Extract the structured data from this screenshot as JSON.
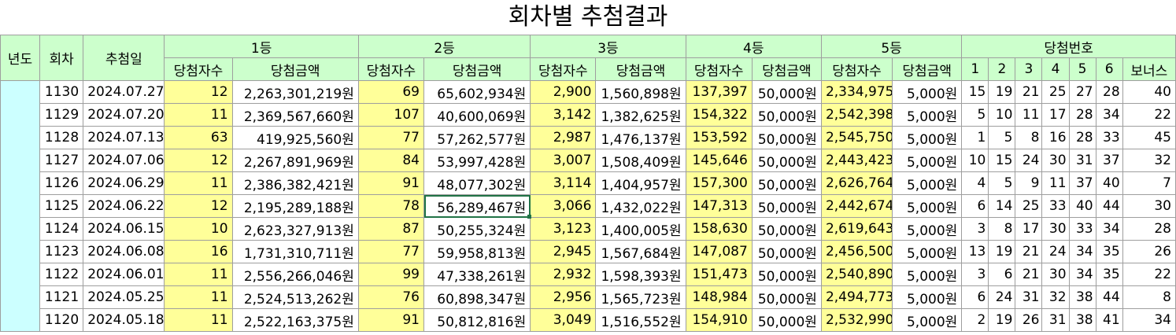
{
  "title": "회차별 추첨결과",
  "headers": {
    "year": "년도",
    "round": "회차",
    "date": "추첨일",
    "rank1": "1등",
    "rank2": "2등",
    "rank3": "3등",
    "rank4": "4등",
    "rank5": "5등",
    "winning_numbers": "당첨번호",
    "winners": "당첨자수",
    "amount": "당첨금액",
    "n1": "1",
    "n2": "2",
    "n3": "3",
    "n4": "4",
    "n5": "5",
    "n6": "6",
    "bonus": "보너스"
  },
  "rows": [
    {
      "round": "1130",
      "date": "2024.07.27",
      "w1": "12",
      "a1": "2,263,301,219원",
      "w2": "69",
      "a2": "65,602,934원",
      "w3": "2,900",
      "a3": "1,560,898원",
      "w4": "137,397",
      "a4": "50,000원",
      "w5": "2,334,975",
      "a5": "5,000원",
      "n": [
        "15",
        "19",
        "21",
        "25",
        "27",
        "28"
      ],
      "bonus": "40"
    },
    {
      "round": "1129",
      "date": "2024.07.20",
      "w1": "11",
      "a1": "2,369,567,660원",
      "w2": "107",
      "a2": "40,600,069원",
      "w3": "3,142",
      "a3": "1,382,625원",
      "w4": "154,322",
      "a4": "50,000원",
      "w5": "2,542,398",
      "a5": "5,000원",
      "n": [
        "5",
        "10",
        "11",
        "17",
        "28",
        "34"
      ],
      "bonus": "22"
    },
    {
      "round": "1128",
      "date": "2024.07.13",
      "w1": "63",
      "a1": "419,925,560원",
      "w2": "77",
      "a2": "57,262,577원",
      "w3": "2,987",
      "a3": "1,476,137원",
      "w4": "153,592",
      "a4": "50,000원",
      "w5": "2,545,750",
      "a5": "5,000원",
      "n": [
        "1",
        "5",
        "8",
        "16",
        "28",
        "33"
      ],
      "bonus": "45"
    },
    {
      "round": "1127",
      "date": "2024.07.06",
      "w1": "12",
      "a1": "2,267,891,969원",
      "w2": "84",
      "a2": "53,997,428원",
      "w3": "3,007",
      "a3": "1,508,409원",
      "w4": "145,646",
      "a4": "50,000원",
      "w5": "2,443,423",
      "a5": "5,000원",
      "n": [
        "10",
        "15",
        "24",
        "30",
        "31",
        "37"
      ],
      "bonus": "32"
    },
    {
      "round": "1126",
      "date": "2024.06.29",
      "w1": "11",
      "a1": "2,386,382,421원",
      "w2": "91",
      "a2": "48,077,302원",
      "w3": "3,114",
      "a3": "1,404,957원",
      "w4": "157,300",
      "a4": "50,000원",
      "w5": "2,626,764",
      "a5": "5,000원",
      "n": [
        "4",
        "5",
        "9",
        "11",
        "37",
        "40"
      ],
      "bonus": "7"
    },
    {
      "round": "1125",
      "date": "2024.06.22",
      "w1": "12",
      "a1": "2,195,289,188원",
      "w2": "78",
      "a2": "56,289,467원",
      "w3": "3,066",
      "a3": "1,432,022원",
      "w4": "147,313",
      "a4": "50,000원",
      "w5": "2,442,674",
      "a5": "5,000원",
      "n": [
        "6",
        "14",
        "25",
        "33",
        "40",
        "44"
      ],
      "bonus": "30"
    },
    {
      "round": "1124",
      "date": "2024.06.15",
      "w1": "10",
      "a1": "2,623,327,913원",
      "w2": "87",
      "a2": "50,255,324원",
      "w3": "3,123",
      "a3": "1,400,005원",
      "w4": "158,630",
      "a4": "50,000원",
      "w5": "2,619,643",
      "a5": "5,000원",
      "n": [
        "3",
        "8",
        "17",
        "30",
        "33",
        "34"
      ],
      "bonus": "28"
    },
    {
      "round": "1123",
      "date": "2024.06.08",
      "w1": "16",
      "a1": "1,731,310,711원",
      "w2": "77",
      "a2": "59,958,813원",
      "w3": "2,945",
      "a3": "1,567,684원",
      "w4": "147,087",
      "a4": "50,000원",
      "w5": "2,456,500",
      "a5": "5,000원",
      "n": [
        "13",
        "19",
        "21",
        "24",
        "34",
        "35"
      ],
      "bonus": "26"
    },
    {
      "round": "1122",
      "date": "2024.06.01",
      "w1": "11",
      "a1": "2,556,266,046원",
      "w2": "99",
      "a2": "47,338,261원",
      "w3": "2,932",
      "a3": "1,598,393원",
      "w4": "151,473",
      "a4": "50,000원",
      "w5": "2,540,890",
      "a5": "5,000원",
      "n": [
        "3",
        "6",
        "21",
        "30",
        "34",
        "35"
      ],
      "bonus": "22"
    },
    {
      "round": "1121",
      "date": "2024.05.25",
      "w1": "11",
      "a1": "2,524,513,262원",
      "w2": "76",
      "a2": "60,898,347원",
      "w3": "2,956",
      "a3": "1,565,723원",
      "w4": "148,984",
      "a4": "50,000원",
      "w5": "2,494,773",
      "a5": "5,000원",
      "n": [
        "6",
        "24",
        "31",
        "32",
        "38",
        "44"
      ],
      "bonus": "8"
    },
    {
      "round": "1120",
      "date": "2024.05.18",
      "w1": "11",
      "a1": "2,522,163,375원",
      "w2": "91",
      "a2": "50,812,816원",
      "w3": "3,049",
      "a3": "1,516,552원",
      "w4": "154,910",
      "a4": "50,000원",
      "w5": "2,532,990",
      "a5": "5,000원",
      "n": [
        "2",
        "19",
        "26",
        "31",
        "38",
        "41"
      ],
      "bonus": "34"
    }
  ],
  "colors": {
    "header_bg": "#ccffcc",
    "winner_bg": "#ffff99",
    "year_bg": "#ccffff",
    "selection": "#217346"
  }
}
